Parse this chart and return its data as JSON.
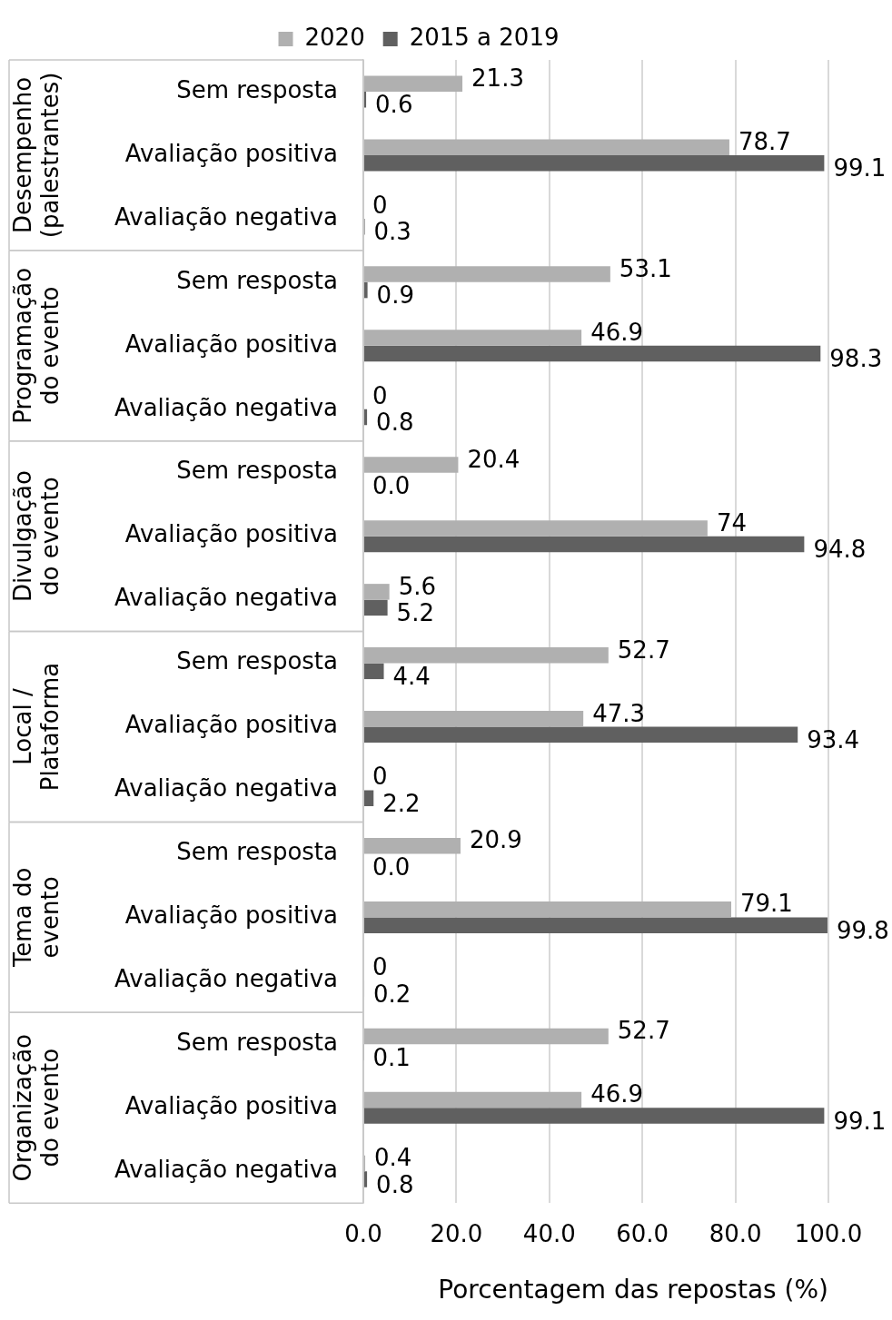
{
  "chart_data": {
    "type": "bar",
    "orientation": "horizontal",
    "xlabel": "Porcentagem das repostas (%)",
    "categories": [
      "Sem resposta",
      "Avaliação positiva",
      "Avaliação negativa",
      "Sem resposta",
      "Avaliação positiva",
      "Avaliação negativa",
      "Sem resposta",
      "Avaliação positiva",
      "Avaliação negativa",
      "Sem resposta",
      "Avaliação positiva",
      "Avaliação negativa",
      "Sem resposta",
      "Avaliação positiva",
      "Avaliação negativa",
      "Sem resposta",
      "Avaliação positiva",
      "Avaliação negativa"
    ],
    "annotations": [
      "Desempenho (palestrantes)",
      "Programação do evento",
      "Divulgação do evento",
      "Local / Plataforma",
      "Tema do evento",
      "Organização do evento"
    ],
    "series": [
      {
        "name": "2020",
        "color": "#b0b0b0",
        "values": [
          21.3,
          78.7,
          0,
          53.1,
          46.9,
          0,
          20.4,
          74,
          5.6,
          52.7,
          47.3,
          0,
          20.9,
          79.1,
          0,
          52.7,
          46.9,
          0.4
        ],
        "value_labels": [
          "21.3",
          "78.7",
          "0",
          "53.1",
          "46.9",
          "0",
          "20.4",
          "74",
          "5.6",
          "52.7",
          "47.3",
          "0",
          "20.9",
          "79.1",
          "0",
          "52.7",
          "46.9",
          "0.4"
        ]
      },
      {
        "name": "2015 a 2019",
        "color": "#606060",
        "values": [
          0.6,
          99.1,
          0.3,
          0.9,
          98.3,
          0.8,
          0.0,
          94.8,
          5.2,
          4.4,
          93.4,
          2.2,
          0.0,
          99.8,
          0.2,
          0.1,
          99.1,
          0.8
        ],
        "value_labels": [
          "0.6",
          "99.1",
          "0.3",
          "0.9",
          "98.3",
          "0.8",
          "0.0",
          "94.8",
          "5.2",
          "4.4",
          "93.4",
          "2.2",
          "0.0",
          "99.8",
          "0.2",
          "0.1",
          "99.1",
          "0.8"
        ]
      }
    ],
    "xlim": [
      0,
      100
    ],
    "xticks": [
      {
        "value": 0,
        "label": "0.0"
      },
      {
        "value": 20,
        "label": "20.0"
      },
      {
        "value": 40,
        "label": "40.0"
      },
      {
        "value": 60,
        "label": "60.0"
      },
      {
        "value": 80,
        "label": "80.0"
      },
      {
        "value": 100,
        "label": "100.0"
      }
    ],
    "grid": "x",
    "legend": "top"
  }
}
